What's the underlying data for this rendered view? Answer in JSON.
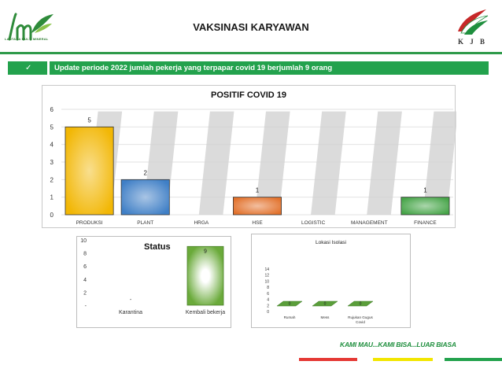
{
  "header": {
    "title": "VAKSINASI KARYAWAN",
    "left_logo_text": "LANTANA MULTI MINERAL",
    "right_logo_text": "K J B"
  },
  "update": {
    "icon": "check-icon",
    "check_glyph": "✓",
    "text": "Update periode 2022 jumlah pekerja yang terpapar covid 19 berjumlah 9 orang"
  },
  "footer": {
    "tagline": "KAMI MAU...KAMI BISA...LUAR BIASA",
    "stripe_colors": [
      "#e53935",
      "#f2e600",
      "#23a24d"
    ]
  },
  "chart_data": [
    {
      "type": "bar",
      "title": "POSITIF COVID 19",
      "categories": [
        "PRODUKSI",
        "PLANT",
        "HRGA",
        "HSE",
        "LOGISTIC",
        "MANAGEMENT",
        "FINANCE"
      ],
      "values": [
        5,
        2,
        0,
        1,
        0,
        0,
        1
      ],
      "data_labels": [
        "5",
        "2",
        "",
        "1",
        "",
        "",
        "1"
      ],
      "bar_colors": [
        "#f2b705",
        "#3f7fc6",
        "#9e9e9e",
        "#e2712b",
        "#9e9e9e",
        "#9e9e9e",
        "#45a447"
      ],
      "ylim": [
        0,
        6
      ],
      "yticks": [
        "0",
        "1",
        "2",
        "3",
        "4",
        "5",
        "6"
      ],
      "grid": true
    },
    {
      "type": "bar",
      "title": "Status",
      "categories": [
        "Karantina",
        "Kembali bekerja"
      ],
      "values": [
        0,
        9
      ],
      "data_labels": [
        "-",
        "9"
      ],
      "bar_color": "#6aaa3a",
      "ylim": [
        0,
        10
      ],
      "yticks": [
        "-",
        "2",
        "4",
        "6",
        "8",
        "10"
      ],
      "grid": false
    },
    {
      "type": "bar",
      "title": "Lokasi Isolasi",
      "categories": [
        "Rumah",
        "Mess",
        "Rujukan Gugus Covid"
      ],
      "values": [
        0,
        0,
        0
      ],
      "data_labels": [
        "0",
        "0",
        "0"
      ],
      "bar_color": "#5a9e3a",
      "ylim": [
        0,
        14
      ],
      "yticks": [
        "0",
        "2",
        "4",
        "6",
        "8",
        "10",
        "12",
        "14"
      ],
      "grid": false
    }
  ]
}
